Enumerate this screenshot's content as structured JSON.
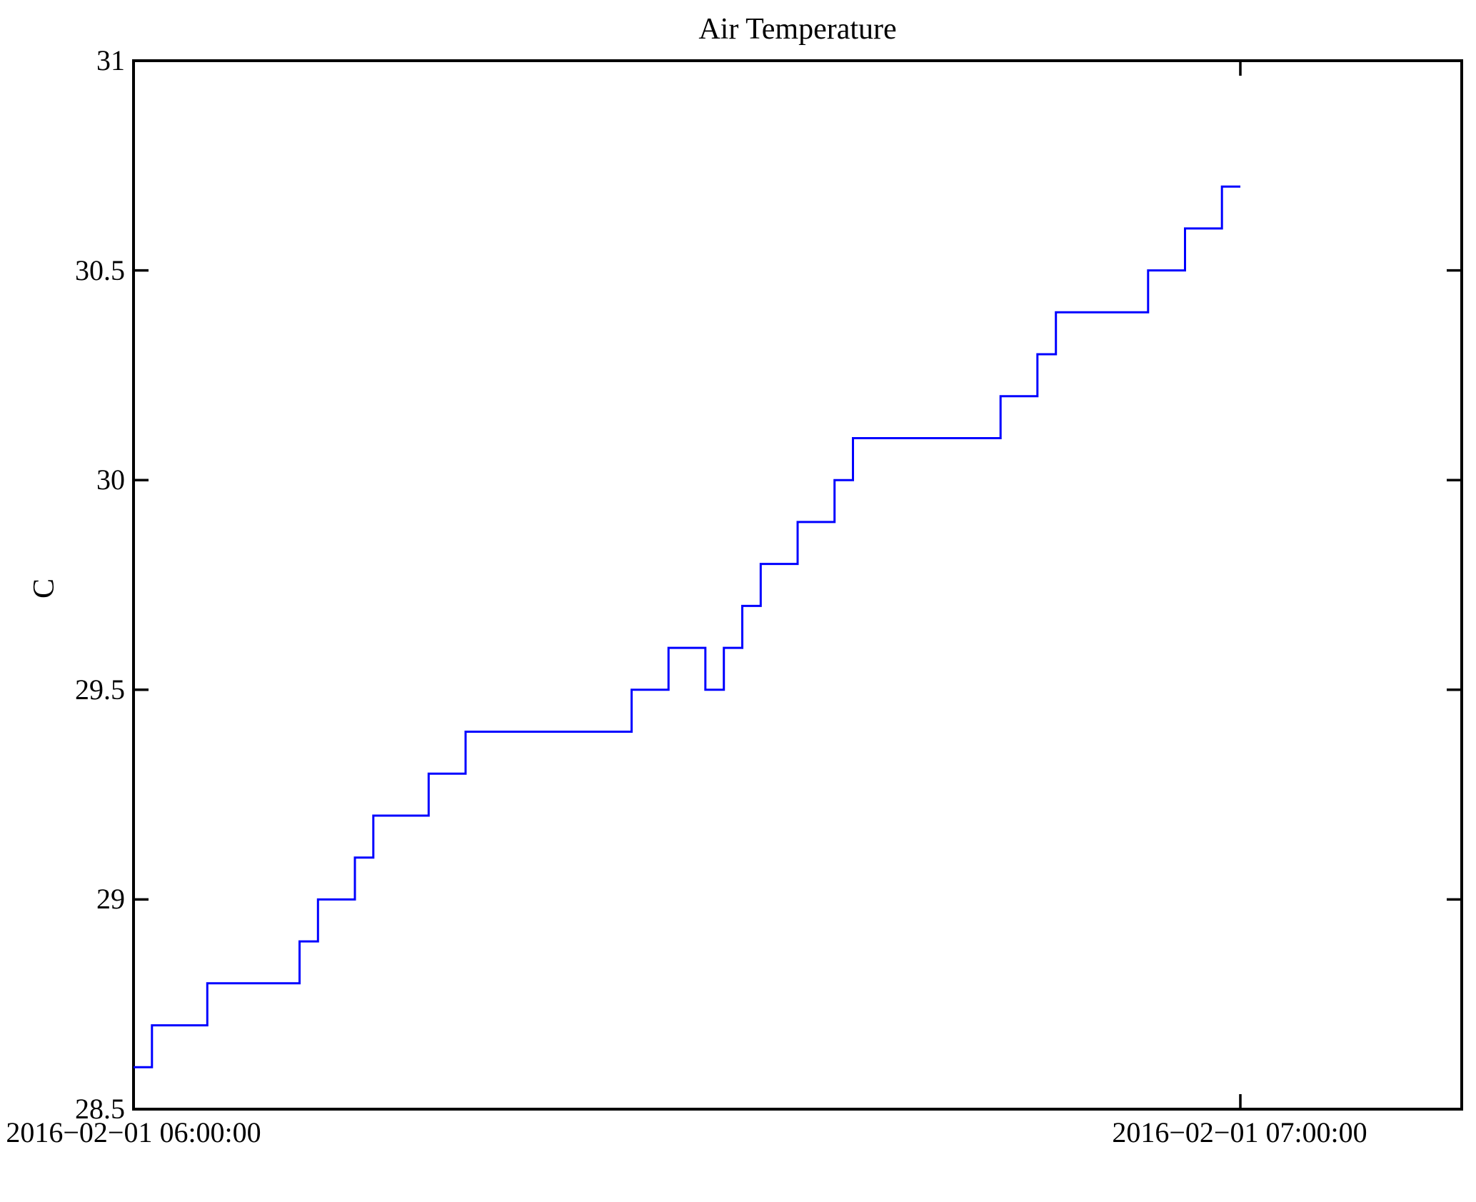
{
  "figure": {
    "background_color": "#ffffff",
    "axis_color": "#000000"
  },
  "chart_data": {
    "type": "line",
    "line_style": "stairs",
    "title": "Air Temperature",
    "ylabel": "C",
    "line_color": "#0000ff",
    "grid": false,
    "legend": false,
    "ylim": [
      28.5,
      31
    ],
    "yticks": [
      28.5,
      29,
      29.5,
      30,
      30.5,
      31
    ],
    "xlim_minutes": [
      0,
      72
    ],
    "xtick_minutes": [
      0,
      60
    ],
    "xtick_labels": [
      "2016−02−01 06:00:00",
      "2016−02−01 07:00:00"
    ],
    "sample_interval_minutes": 1,
    "end_minute": 60,
    "steps_minutes_temperature": [
      [
        0,
        28.6
      ],
      [
        1,
        28.7
      ],
      [
        4,
        28.8
      ],
      [
        9,
        28.9
      ],
      [
        10,
        29.0
      ],
      [
        12,
        29.1
      ],
      [
        13,
        29.2
      ],
      [
        16,
        29.3
      ],
      [
        18,
        29.4
      ],
      [
        27,
        29.5
      ],
      [
        29,
        29.6
      ],
      [
        31,
        29.5
      ],
      [
        32,
        29.6
      ],
      [
        33,
        29.7
      ],
      [
        34,
        29.8
      ],
      [
        36,
        29.9
      ],
      [
        38,
        30.0
      ],
      [
        39,
        30.1
      ],
      [
        47,
        30.2
      ],
      [
        49,
        30.3
      ],
      [
        50,
        30.4
      ],
      [
        55,
        30.5
      ],
      [
        57,
        30.6
      ],
      [
        59,
        30.7
      ]
    ]
  }
}
